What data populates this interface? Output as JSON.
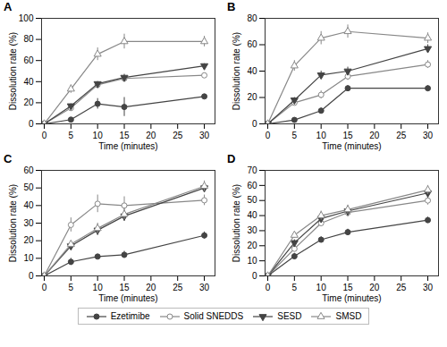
{
  "chart_data": [
    {
      "type": "line",
      "title": "A",
      "xlabel": "Time (minutes)",
      "ylabel": "Dissolution rate (%)",
      "x": [
        0,
        5,
        10,
        15,
        30
      ],
      "xlim": [
        -0.5,
        32
      ],
      "xticks": [
        0,
        5,
        10,
        15,
        20,
        25,
        30
      ],
      "ylim": [
        0,
        100
      ],
      "yticks": [
        0,
        20,
        40,
        60,
        80,
        100
      ],
      "legend": "bottom",
      "series": [
        {
          "name": "Ezetimibe",
          "color": "#444444",
          "marker": "circle",
          "line_style": "solid",
          "values": [
            0,
            4,
            19,
            16,
            26
          ],
          "yerr": [
            0,
            1,
            5,
            9,
            2
          ]
        },
        {
          "name": "Solid SNEDDS",
          "color": "#888888",
          "marker": "circle-open",
          "line_style": "solid",
          "values": [
            0,
            15,
            37,
            43,
            46
          ],
          "yerr": [
            0,
            3,
            3,
            3,
            2
          ]
        },
        {
          "name": "SESD",
          "color": "#444444",
          "marker": "triangle-down",
          "line_style": "solid",
          "values": [
            0,
            17,
            38,
            44,
            55
          ],
          "yerr": [
            0,
            2,
            2,
            3,
            2
          ]
        },
        {
          "name": "SMSD",
          "color": "#888888",
          "marker": "triangle-up-open",
          "line_style": "solid",
          "values": [
            0,
            33,
            66,
            78,
            78
          ],
          "yerr": [
            0,
            4,
            6,
            7,
            5
          ]
        }
      ]
    },
    {
      "type": "line",
      "title": "B",
      "xlabel": "Time (minutes)",
      "ylabel": "Dissolution rate (%)",
      "x": [
        0,
        5,
        10,
        15,
        30
      ],
      "xlim": [
        -0.5,
        32
      ],
      "xticks": [
        0,
        5,
        10,
        15,
        20,
        25,
        30
      ],
      "ylim": [
        0,
        80
      ],
      "yticks": [
        0,
        20,
        40,
        60,
        80
      ],
      "legend": "bottom",
      "series": [
        {
          "name": "Ezetimibe",
          "color": "#444444",
          "marker": "circle",
          "line_style": "solid",
          "values": [
            0,
            3,
            10,
            27,
            27
          ],
          "yerr": [
            0,
            1,
            2,
            2,
            2
          ]
        },
        {
          "name": "Solid SNEDDS",
          "color": "#888888",
          "marker": "circle-open",
          "line_style": "solid",
          "values": [
            0,
            16,
            22,
            36,
            45
          ],
          "yerr": [
            0,
            2,
            3,
            3,
            3
          ]
        },
        {
          "name": "SESD",
          "color": "#444444",
          "marker": "triangle-down",
          "line_style": "solid",
          "values": [
            0,
            18,
            37,
            40,
            57
          ],
          "yerr": [
            0,
            2,
            3,
            3,
            3
          ]
        },
        {
          "name": "SMSD",
          "color": "#888888",
          "marker": "triangle-up-open",
          "line_style": "solid",
          "values": [
            0,
            44,
            65,
            70,
            65
          ],
          "yerr": [
            0,
            4,
            5,
            5,
            4
          ]
        }
      ]
    },
    {
      "type": "line",
      "title": "C",
      "xlabel": "Time (minutes)",
      "ylabel": "Dissolution rate (%)",
      "x": [
        0,
        5,
        10,
        15,
        30
      ],
      "xlim": [
        -0.5,
        32
      ],
      "xticks": [
        0,
        5,
        10,
        15,
        20,
        25,
        30
      ],
      "ylim": [
        0,
        60
      ],
      "yticks": [
        0,
        10,
        20,
        30,
        40,
        50,
        60
      ],
      "legend": "bottom",
      "series": [
        {
          "name": "Ezetimibe",
          "color": "#444444",
          "marker": "circle",
          "line_style": "solid",
          "values": [
            0,
            8,
            11,
            12,
            23
          ],
          "yerr": [
            0,
            2,
            1,
            2,
            2
          ]
        },
        {
          "name": "Solid SNEDDS",
          "color": "#888888",
          "marker": "circle-open",
          "line_style": "solid",
          "values": [
            0,
            29,
            41,
            40,
            43
          ],
          "yerr": [
            0,
            4,
            5,
            5,
            3
          ]
        },
        {
          "name": "SESD",
          "color": "#444444",
          "marker": "triangle-down",
          "line_style": "solid",
          "values": [
            0,
            17,
            26,
            34,
            50
          ],
          "yerr": [
            0,
            2,
            3,
            3,
            2
          ]
        },
        {
          "name": "SMSD",
          "color": "#888888",
          "marker": "triangle-up-open",
          "line_style": "solid",
          "values": [
            0,
            18,
            27,
            35,
            51
          ],
          "yerr": [
            0,
            2,
            3,
            3,
            3
          ]
        }
      ]
    },
    {
      "type": "line",
      "title": "D",
      "xlabel": "Time (minutes)",
      "ylabel": "Dissolution rate (%)",
      "x": [
        0,
        5,
        10,
        15,
        30
      ],
      "xlim": [
        -0.5,
        32
      ],
      "xticks": [
        0,
        5,
        10,
        15,
        20,
        25,
        30
      ],
      "ylim": [
        0,
        70
      ],
      "yticks": [
        0,
        10,
        20,
        30,
        40,
        50,
        60,
        70
      ],
      "legend": "bottom",
      "series": [
        {
          "name": "Ezetimibe",
          "color": "#444444",
          "marker": "circle",
          "line_style": "solid",
          "values": [
            0,
            13,
            24,
            29,
            37
          ],
          "yerr": [
            0,
            2,
            2,
            2,
            2
          ]
        },
        {
          "name": "Solid SNEDDS",
          "color": "#888888",
          "marker": "circle-open",
          "line_style": "solid",
          "values": [
            0,
            18,
            35,
            42,
            50
          ],
          "yerr": [
            0,
            2,
            2,
            3,
            3
          ]
        },
        {
          "name": "SESD",
          "color": "#444444",
          "marker": "triangle-down",
          "line_style": "solid",
          "values": [
            0,
            22,
            38,
            43,
            55
          ],
          "yerr": [
            0,
            2,
            2,
            3,
            3
          ]
        },
        {
          "name": "SMSD",
          "color": "#888888",
          "marker": "triangle-up-open",
          "line_style": "solid",
          "values": [
            0,
            27,
            40,
            44,
            57
          ],
          "yerr": [
            0,
            2,
            3,
            3,
            3
          ]
        }
      ]
    }
  ]
}
